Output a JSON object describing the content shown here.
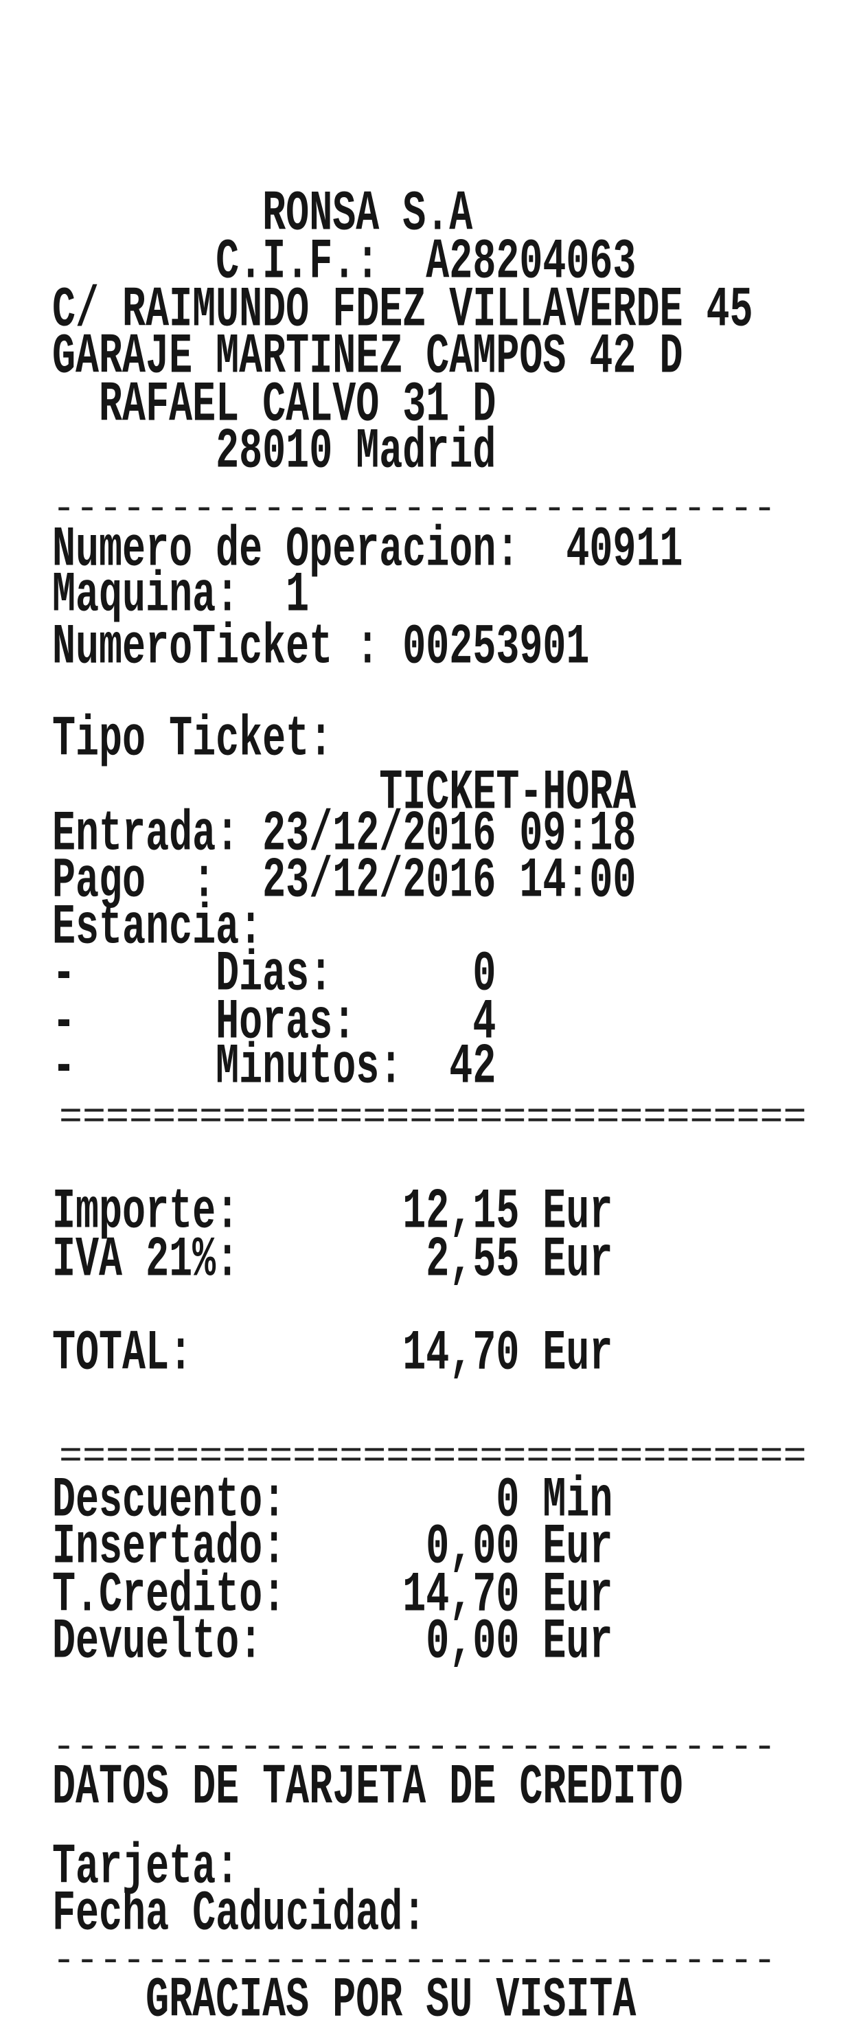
{
  "header": {
    "company": "         RONSA S.A",
    "cif": "       C.I.F.:  A28204063",
    "address1": "C/ RAIMUNDO FDEZ VILLAVERDE 45",
    "address2": "GARAJE MARTINEZ CAMPOS 42 D",
    "address3": "  RAFAEL CALVO 31 D",
    "city": "       28010 Madrid"
  },
  "divider_dash": "-------------------------------",
  "divider_equal": "================================",
  "operation": {
    "numero_operacion": "Numero de Operacion:  40911",
    "maquina": "Maquina:  1",
    "numero_ticket": "NumeroTicket : 00253901"
  },
  "ticket": {
    "tipo_label": "Tipo Ticket:",
    "tipo_value": "              TICKET-HORA",
    "entrada": "Entrada: 23/12/2016 09:18",
    "pago": "Pago  :  23/12/2016 14:00",
    "estancia": "Estancia:",
    "dias": "-      Dias:      0",
    "horas": "-      Horas:     4",
    "minutos": "-      Minutos:  42"
  },
  "amounts": {
    "importe": "Importe:       12,15 Eur",
    "iva": "IVA 21%:        2,55 Eur",
    "total": "TOTAL:         14,70 Eur"
  },
  "payment": {
    "descuento": "Descuento:         0 Min",
    "insertado": "Insertado:      0,00 Eur",
    "credito": "T.Credito:     14,70 Eur",
    "devuelto": "Devuelto:       0,00 Eur"
  },
  "card": {
    "title": "DATOS DE TARJETA DE CREDITO",
    "tarjeta": "Tarjeta:",
    "caducidad": "Fecha Caducidad:"
  },
  "footer": {
    "thanks": "    GRACIAS POR SU VISITA"
  }
}
